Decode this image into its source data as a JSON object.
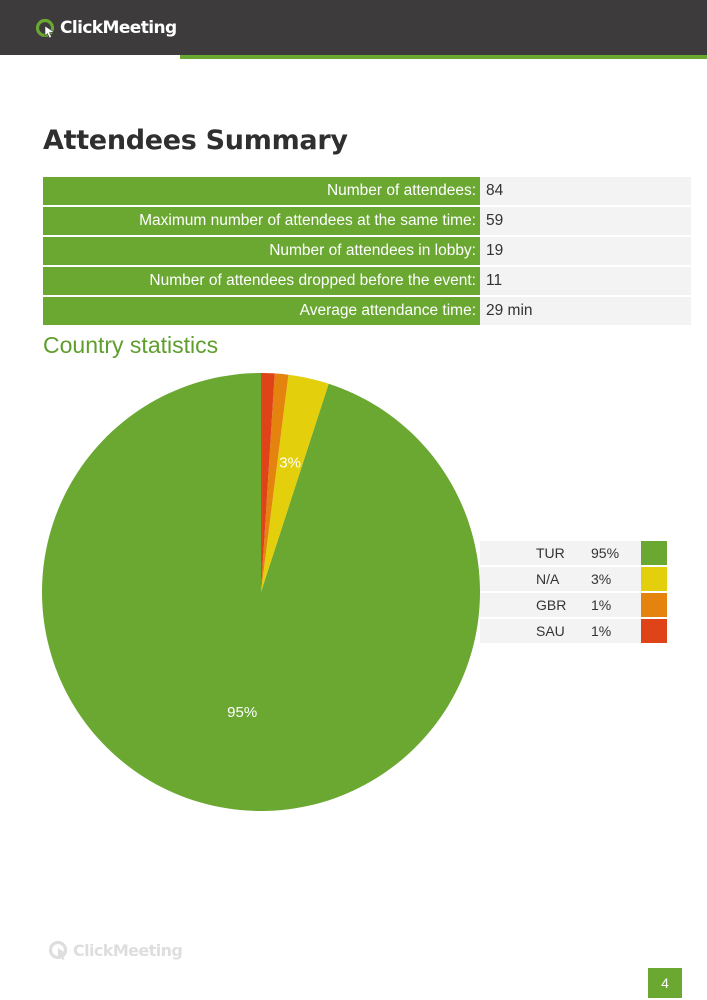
{
  "header": {
    "brand_name": "ClickMeeting",
    "bar_color": "#3d3b3c",
    "accent_color": "#6aa832"
  },
  "page_title": "Attendees Summary",
  "summary": {
    "rows": [
      {
        "label": "Number of attendees:",
        "value": "84"
      },
      {
        "label": "Maximum number of attendees at the same time:",
        "value": "59"
      },
      {
        "label": "Number of attendees in lobby:",
        "value": "19"
      },
      {
        "label": "Number of attendees dropped before the event:",
        "value": "11"
      },
      {
        "label": "Average attendance time:",
        "value": "29 min"
      }
    ]
  },
  "country_stats": {
    "title": "Country statistics",
    "legend": [
      {
        "country": "TUR",
        "percent": "95%",
        "color": "#6aa832"
      },
      {
        "country": "N/A",
        "percent": "3%",
        "color": "#e3cf0b"
      },
      {
        "country": "GBR",
        "percent": "1%",
        "color": "#e5830f"
      },
      {
        "country": "SAU",
        "percent": "1%",
        "color": "#df4419"
      }
    ]
  },
  "chart_data": {
    "type": "pie",
    "categories": [
      "TUR",
      "N/A",
      "GBR",
      "SAU"
    ],
    "values": [
      95,
      3,
      1,
      1
    ],
    "slice_labels": [
      "95%",
      "3%",
      "",
      ""
    ],
    "colors": [
      "#6aa832",
      "#e3cf0b",
      "#e5830f",
      "#df4419"
    ],
    "title": "Country statistics"
  },
  "footer": {
    "brand_name": "ClickMeeting",
    "page_number": "4"
  }
}
